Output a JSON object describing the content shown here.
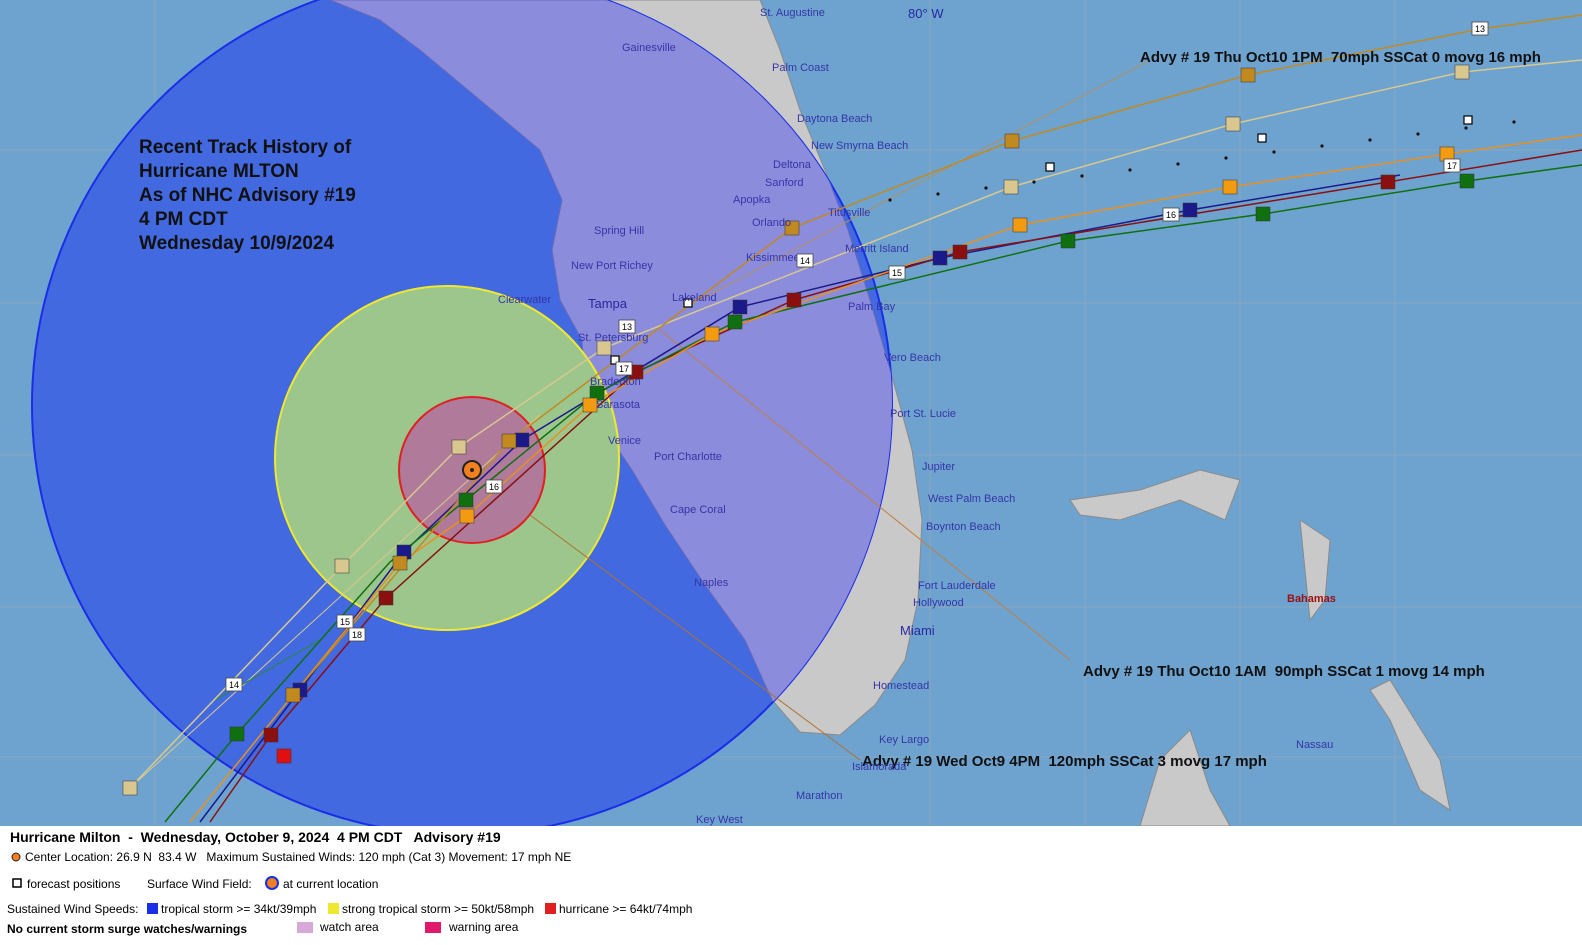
{
  "map": {
    "longitude_label": "80° W",
    "title_lines": [
      "Recent Track History of",
      "Hurricane MLTON",
      "As of NHC Advisory #19",
      "4 PM CDT",
      "Wednesday 10/9/2024"
    ],
    "advisories": [
      "Advy # 19 Thu Oct10 1PM  70mph SSCat 0 movg 16 mph",
      "Advy # 19 Thu Oct10 1AM  90mph SSCat 1 movg 14 mph",
      "Advy # 19 Wed Oct9 4PM  120mph SSCat 3 movg 17 mph"
    ],
    "places": [
      "St. Augustine",
      "Gainesville",
      "Palm Coast",
      "Daytona Beach",
      "New Smyrna Beach",
      "Deltona",
      "Sanford",
      "Apopka",
      "Orlando",
      "Titusville",
      "Spring Hill",
      "Merritt Island",
      "New Port Richey",
      "Kissimmee",
      "Clearwater",
      "Lakeland",
      "Palm Bay",
      "St. Petersburg",
      "Vero Beach",
      "Bradenton",
      "Sarasota",
      "Port St. Lucie",
      "Venice",
      "Port Charlotte",
      "Jupiter",
      "West Palm Beach",
      "Boynton Beach",
      "Cape Coral",
      "Naples",
      "Fort Lauderdale",
      "Hollywood",
      "Homestead",
      "Key Largo",
      "Islamorada",
      "Marathon",
      "Key West",
      "Nassau"
    ],
    "major_places": [
      "Tampa",
      "Miami"
    ],
    "region": "Bahamas",
    "track_labels": [
      "13",
      "13",
      "14",
      "14",
      "15",
      "15",
      "16",
      "16",
      "17",
      "17",
      "18"
    ]
  },
  "legend": {
    "header": "Hurricane Milton  -  Wednesday, October 9, 2024  4 PM CDT   Advisory #19",
    "center": "Center Location: 26.9 N  83.4 W   Maximum Sustained Winds: 120 mph (Cat 3) Movement: 17 mph NE",
    "forecast": "forecast positions",
    "wind_field": "Surface Wind Field:",
    "current": "at current location",
    "speeds": "Sustained Wind Speeds:",
    "categories": [
      "tropical storm >= 34kt/39mph",
      "strong tropical storm >= 50kt/58mph",
      "hurricane >= 64kt/74mph"
    ],
    "surge": "No current storm surge watches/warnings",
    "watch": "watch area",
    "warning": "warning area"
  }
}
